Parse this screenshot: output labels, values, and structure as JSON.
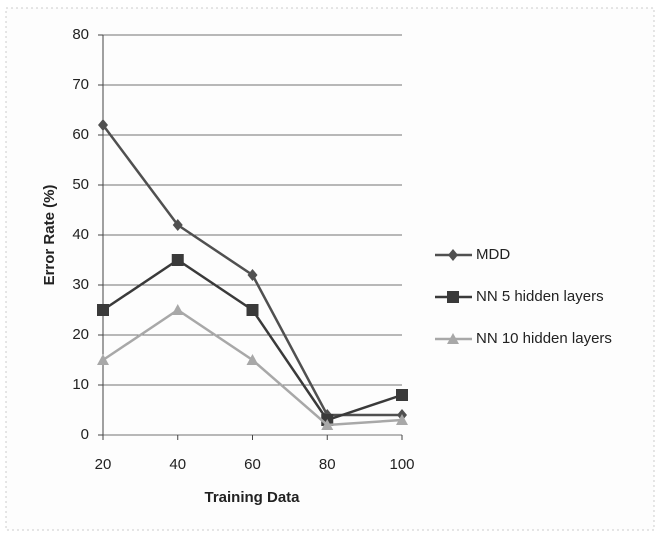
{
  "chart_data": {
    "type": "line",
    "x_label": "Training Data",
    "y_label": "Error Rate (%)",
    "x": [
      20,
      40,
      60,
      80,
      100
    ],
    "xlim": [
      20,
      100
    ],
    "xticks": [
      20,
      40,
      60,
      80,
      100
    ],
    "ylim": [
      0,
      80
    ],
    "yticks": [
      0,
      10,
      20,
      30,
      40,
      50,
      60,
      70,
      80
    ],
    "grid": true,
    "legend": "right",
    "series": [
      {
        "name": "MDD",
        "color": "#505050",
        "marker": "diamond",
        "values": [
          62,
          42,
          32,
          4,
          4
        ]
      },
      {
        "name": "NN 5 hidden layers",
        "color": "#3a3a3a",
        "marker": "square",
        "values": [
          25,
          35,
          25,
          3,
          8
        ]
      },
      {
        "name": "NN 10 hidden layers",
        "color": "#a8a8a8",
        "marker": "triangle",
        "values": [
          15,
          25,
          15,
          2,
          3
        ]
      }
    ]
  }
}
